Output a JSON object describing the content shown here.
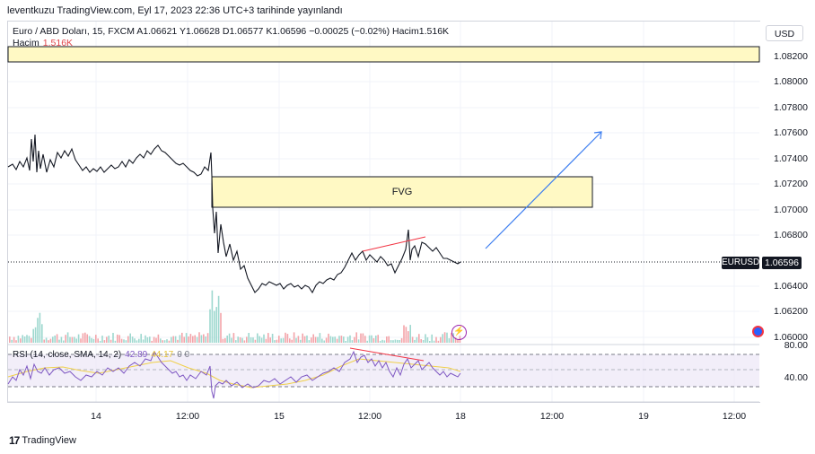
{
  "header": {
    "title": "leventkuzu TradingView.com, Eyl 17, 2023 22:36 UTC+3 tarihinde yayınlandı"
  },
  "legend": {
    "main": "Euro / ABD Doları, 15, FXCM  A1.06621  Y1.06628  D1.06577  K1.06596  −0.00025 (−0.02%)  Hacim1.516K",
    "volume_label": "Hacim",
    "volume_value": "1.516K"
  },
  "currency_button": "USD",
  "price_axis": {
    "ticks": [
      "1.08200",
      "1.08000",
      "1.07800",
      "1.07600",
      "1.07400",
      "1.07200",
      "1.07000",
      "1.06800",
      "1.06400",
      "1.06200",
      "1.06000"
    ],
    "rsi_ticks": [
      "80.00",
      "40.00"
    ]
  },
  "last_price": {
    "symbol": "EURUSD",
    "value": "1.06596"
  },
  "time_axis": {
    "ticks": [
      "14",
      "12:00",
      "15",
      "12:00",
      "18",
      "12:00",
      "19",
      "12:00"
    ]
  },
  "annotations": {
    "fvg_label": "FVG"
  },
  "rsi": {
    "label": "RSI (14, close, SMA, 14, 2)",
    "rsi_value": "42.89",
    "sma_value": "44.17",
    "zero_values": "0  0"
  },
  "footer": {
    "brand": "TradingView"
  },
  "colors": {
    "up_volume": "#f3a4a9",
    "down_volume": "#9ed8cf",
    "zone_fill": "#fff9c4",
    "trend_arrow": "#3d7ef0",
    "rsi_line": "#7e57c2",
    "rsi_sma": "#f0d04a",
    "divergence": "#f23645"
  },
  "icons": [
    "flash-icon",
    "globe-icon",
    "tradingview-logo-icon"
  ]
}
